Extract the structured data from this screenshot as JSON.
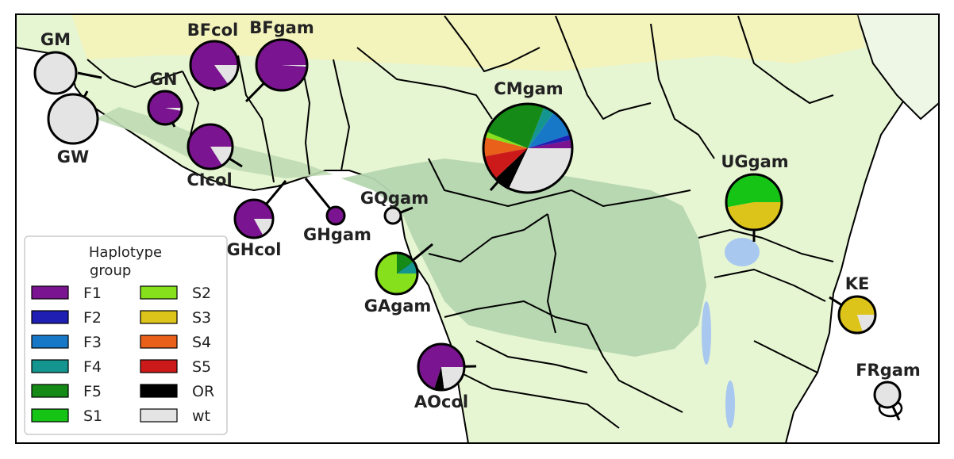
{
  "legend": {
    "title_line1": "Haplotype",
    "title_line2": "group",
    "items": [
      {
        "key": "F1",
        "label": "F1",
        "color": "#7b1490"
      },
      {
        "key": "F2",
        "label": "F2",
        "color": "#1f1fb4"
      },
      {
        "key": "F3",
        "label": "F3",
        "color": "#1878c8"
      },
      {
        "key": "F4",
        "label": "F4",
        "color": "#14958f"
      },
      {
        "key": "F5",
        "label": "F5",
        "color": "#168a16"
      },
      {
        "key": "S1",
        "label": "S1",
        "color": "#16c416"
      },
      {
        "key": "S2",
        "label": "S2",
        "color": "#86e01c"
      },
      {
        "key": "S3",
        "label": "S3",
        "color": "#dcc41a"
      },
      {
        "key": "S4",
        "label": "S4",
        "color": "#e8601a"
      },
      {
        "key": "S5",
        "label": "S5",
        "color": "#cc1a1a"
      },
      {
        "key": "OR",
        "label": "OR",
        "color": "#000000"
      },
      {
        "key": "wt",
        "label": "wt",
        "color": "#e4e4e4"
      }
    ]
  },
  "populations": [
    {
      "id": "GM",
      "label": "GM",
      "composition": {
        "wt": 1.0
      }
    },
    {
      "id": "GW",
      "label": "GW",
      "composition": {
        "wt": 1.0
      }
    },
    {
      "id": "BFcol",
      "label": "BFcol",
      "composition": {
        "F1": 0.85,
        "wt": 0.15
      }
    },
    {
      "id": "BFgam",
      "label": "BFgam",
      "composition": {
        "F1": 0.99,
        "wt": 0.01
      }
    },
    {
      "id": "GN",
      "label": "GN",
      "composition": {
        "F1": 0.97,
        "wt": 0.03
      }
    },
    {
      "id": "CIcol",
      "label": "CIcol",
      "composition": {
        "F1": 0.84,
        "wt": 0.16
      }
    },
    {
      "id": "GHcol",
      "label": "GHcol",
      "composition": {
        "F1": 0.83,
        "wt": 0.17
      }
    },
    {
      "id": "GHgam",
      "label": "GHgam",
      "composition": {
        "F1": 1.0
      }
    },
    {
      "id": "GQgam",
      "label": "GQgam",
      "composition": {
        "wt": 1.0
      }
    },
    {
      "id": "CMgam",
      "label": "CMgam",
      "composition": {
        "F1": 0.03,
        "F2": 0.02,
        "F3": 0.1,
        "F4": 0.04,
        "F5": 0.25,
        "S2": 0.02,
        "S4": 0.07,
        "S5": 0.09,
        "OR": 0.06,
        "wt": 0.32
      }
    },
    {
      "id": "GAgam",
      "label": "GAgam",
      "composition": {
        "F4": 0.1,
        "F5": 0.15,
        "S2": 0.75
      }
    },
    {
      "id": "UGgam",
      "label": "UGgam",
      "composition": {
        "S1": 0.53,
        "S3": 0.47
      }
    },
    {
      "id": "KE",
      "label": "KE",
      "composition": {
        "S3": 0.8,
        "wt": 0.2
      }
    },
    {
      "id": "AOcol",
      "label": "AOcol",
      "composition": {
        "F1": 0.7,
        "OR": 0.07,
        "wt": 0.23
      }
    },
    {
      "id": "FRgam",
      "label": "FRgam",
      "composition": {
        "wt": 1.0
      }
    }
  ]
}
